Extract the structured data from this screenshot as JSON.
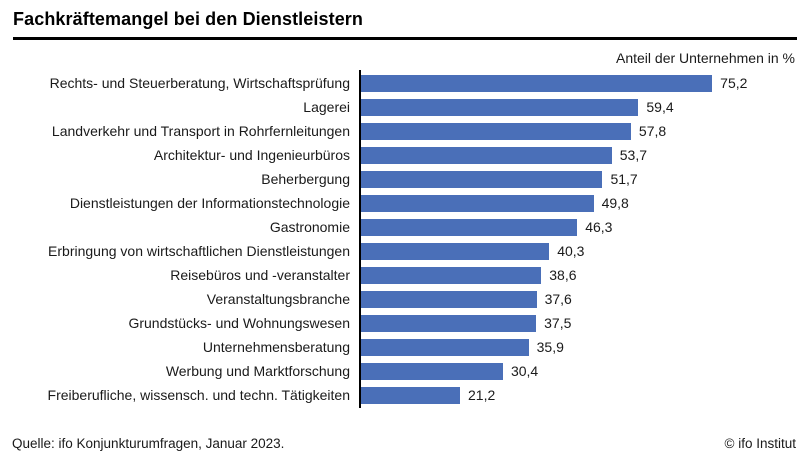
{
  "chart_data": {
    "type": "bar",
    "orientation": "horizontal",
    "title": "Fachkräftemangel bei den Dienstleistern",
    "unit_label": "Anteil der Unternehmen in %",
    "categories": [
      "Rechts- und Steuerberatung, Wirtschaftsprüfung",
      "Lagerei",
      "Landverkehr und Transport in Rohrfernleitungen",
      "Architektur- und Ingenieurbüros",
      "Beherbergung",
      "Dienstleistungen der Informationstechnologie",
      "Gastronomie",
      "Erbringung von wirtschaftlichen Dienstleistungen",
      "Reisebüros und -veranstalter",
      "Veranstaltungsbranche",
      "Grundstücks- und Wohnungswesen",
      "Unternehmensberatung",
      "Werbung und Marktforschung",
      "Freiberufliche, wissensch. und techn. Tätigkeiten"
    ],
    "values": [
      75.2,
      59.4,
      57.8,
      53.7,
      51.7,
      49.8,
      46.3,
      40.3,
      38.6,
      37.6,
      37.5,
      35.9,
      30.4,
      21.2
    ],
    "value_labels": [
      "75,2",
      "59,4",
      "57,8",
      "53,7",
      "51,7",
      "49,8",
      "46,3",
      "40,3",
      "38,6",
      "37,6",
      "37,5",
      "35,9",
      "30,4",
      "21,2"
    ],
    "xlim": [
      0,
      80
    ],
    "bar_color": "#4A6FB8",
    "axis_color": "#000000",
    "legend": "none",
    "grid": "off",
    "source": "Quelle: ifo Konjunkturumfragen, Januar 2023.",
    "copyright": "© ifo Institut"
  }
}
